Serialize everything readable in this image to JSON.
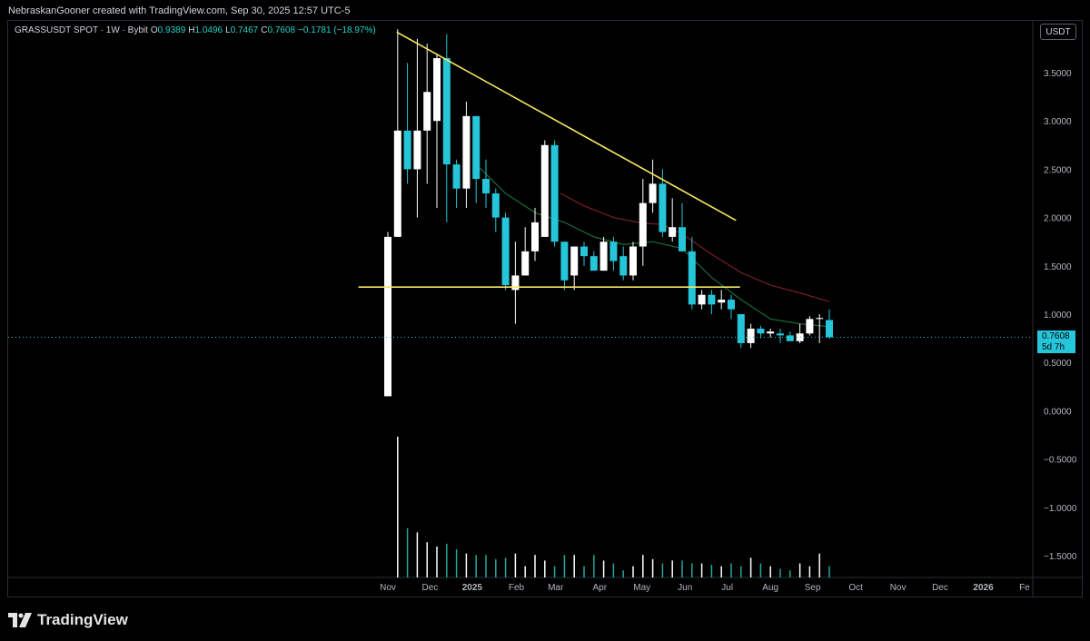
{
  "header": {
    "attribution": "NebraskanGooner created with TradingView.com, Sep 30, 2025 12:57 UTC-5"
  },
  "legend": {
    "symbol": "GRASSUSDT SPOT · 1W · Bybit",
    "o_label": "O",
    "o_value": "0.9389",
    "h_label": "H",
    "h_value": "1.0496",
    "l_label": "L",
    "l_value": "0.7467",
    "c_label": "C",
    "c_value": "0.7608",
    "change": "−0.1781 (−18.97%)"
  },
  "unit_button": "USDT",
  "price_tag": {
    "price": "0.7608",
    "countdown": "5d 7h"
  },
  "brand": {
    "logo_text": "TradingView"
  },
  "colors": {
    "up": "#ffffff",
    "down": "#26c6da",
    "trend": "#f5e663",
    "ma_green": "#1b6b3a",
    "ma_red": "#7d1f24",
    "volume_up": "#ffffff",
    "volume_down": "#26a69a"
  },
  "chart_data": {
    "type": "candlestick",
    "y_axis": {
      "range": [
        -1.75,
        3.95
      ],
      "ticks": [
        "3.5000",
        "3.0000",
        "2.5000",
        "2.0000",
        "1.5000",
        "1.0000",
        "0.5000",
        "0.0000",
        "−0.5000",
        "−1.0000",
        "−1.5000"
      ],
      "tick_values": [
        3.5,
        3.0,
        2.5,
        2.0,
        1.5,
        1.0,
        0.5,
        0.0,
        -0.5,
        -1.0,
        -1.5
      ]
    },
    "x_axis": {
      "labels": [
        "Nov",
        "Dec",
        "2025",
        "Feb",
        "Mar",
        "Apr",
        "May",
        "Jun",
        "Jul",
        "Aug",
        "Sep",
        "Oct",
        "Nov",
        "Dec",
        "2026",
        "Fe"
      ],
      "label_weeks": [
        0,
        4.3,
        8.6,
        13.1,
        17.1,
        21.6,
        25.9,
        30.3,
        34.6,
        39.0,
        43.3,
        47.7,
        52.0,
        56.3,
        60.7,
        64.9
      ],
      "bold_labels": [
        "2025",
        "2026"
      ]
    },
    "candles": [
      {
        "o": 0.15,
        "h": 1.85,
        "l": 0.15,
        "c": 1.8
      },
      {
        "o": 1.8,
        "h": 3.95,
        "l": 1.8,
        "c": 2.9
      },
      {
        "o": 2.9,
        "h": 3.6,
        "l": 2.35,
        "c": 2.5
      },
      {
        "o": 2.5,
        "h": 3.85,
        "l": 2.0,
        "c": 2.9
      },
      {
        "o": 2.9,
        "h": 3.8,
        "l": 2.35,
        "c": 3.3
      },
      {
        "o": 3.0,
        "h": 3.7,
        "l": 2.1,
        "c": 3.65
      },
      {
        "o": 3.65,
        "h": 3.9,
        "l": 1.95,
        "c": 2.55
      },
      {
        "o": 2.55,
        "h": 2.6,
        "l": 2.1,
        "c": 2.3
      },
      {
        "o": 2.3,
        "h": 3.2,
        "l": 2.1,
        "c": 3.05
      },
      {
        "o": 3.05,
        "h": 3.05,
        "l": 2.15,
        "c": 2.4
      },
      {
        "o": 2.4,
        "h": 2.6,
        "l": 2.1,
        "c": 2.25
      },
      {
        "o": 2.25,
        "h": 2.3,
        "l": 1.85,
        "c": 2.0
      },
      {
        "o": 2.0,
        "h": 2.05,
        "l": 1.25,
        "c": 1.3
      },
      {
        "o": 1.25,
        "h": 1.75,
        "l": 0.9,
        "c": 1.4
      },
      {
        "o": 1.4,
        "h": 1.9,
        "l": 1.4,
        "c": 1.65
      },
      {
        "o": 1.65,
        "h": 2.1,
        "l": 1.55,
        "c": 1.95
      },
      {
        "o": 1.8,
        "h": 2.8,
        "l": 1.8,
        "c": 2.75
      },
      {
        "o": 2.75,
        "h": 2.8,
        "l": 1.7,
        "c": 1.75
      },
      {
        "o": 1.75,
        "h": 1.75,
        "l": 1.25,
        "c": 1.35
      },
      {
        "o": 1.4,
        "h": 1.7,
        "l": 1.25,
        "c": 1.7
      },
      {
        "o": 1.7,
        "h": 1.75,
        "l": 1.5,
        "c": 1.6
      },
      {
        "o": 1.6,
        "h": 1.65,
        "l": 1.45,
        "c": 1.45
      },
      {
        "o": 1.45,
        "h": 1.8,
        "l": 1.45,
        "c": 1.75
      },
      {
        "o": 1.75,
        "h": 1.8,
        "l": 1.45,
        "c": 1.55
      },
      {
        "o": 1.6,
        "h": 1.7,
        "l": 1.35,
        "c": 1.4
      },
      {
        "o": 1.4,
        "h": 1.75,
        "l": 1.35,
        "c": 1.7
      },
      {
        "o": 1.7,
        "h": 2.4,
        "l": 1.5,
        "c": 2.15
      },
      {
        "o": 2.15,
        "h": 2.6,
        "l": 2.05,
        "c": 2.35
      },
      {
        "o": 2.35,
        "h": 2.5,
        "l": 1.8,
        "c": 1.85
      },
      {
        "o": 1.8,
        "h": 2.2,
        "l": 1.75,
        "c": 1.9
      },
      {
        "o": 1.9,
        "h": 2.15,
        "l": 1.65,
        "c": 1.65
      },
      {
        "o": 1.65,
        "h": 1.8,
        "l": 1.05,
        "c": 1.1
      },
      {
        "o": 1.1,
        "h": 1.25,
        "l": 1.05,
        "c": 1.2
      },
      {
        "o": 1.2,
        "h": 1.25,
        "l": 1.0,
        "c": 1.1
      },
      {
        "o": 1.12,
        "h": 1.25,
        "l": 1.05,
        "c": 1.15
      },
      {
        "o": 1.15,
        "h": 1.2,
        "l": 0.95,
        "c": 1.05
      },
      {
        "o": 1.0,
        "h": 0.98,
        "l": 0.65,
        "c": 0.7
      },
      {
        "o": 0.7,
        "h": 0.9,
        "l": 0.65,
        "c": 0.85
      },
      {
        "o": 0.85,
        "h": 0.88,
        "l": 0.75,
        "c": 0.8
      },
      {
        "o": 0.8,
        "h": 0.85,
        "l": 0.76,
        "c": 0.82
      },
      {
        "o": 0.8,
        "h": 0.85,
        "l": 0.7,
        "c": 0.78
      },
      {
        "o": 0.78,
        "h": 0.82,
        "l": 0.72,
        "c": 0.72
      },
      {
        "o": 0.72,
        "h": 0.9,
        "l": 0.7,
        "c": 0.8
      },
      {
        "o": 0.8,
        "h": 0.98,
        "l": 0.78,
        "c": 0.95
      },
      {
        "o": 0.95,
        "h": 1.0,
        "l": 0.7,
        "c": 0.96
      },
      {
        "o": 0.9389,
        "h": 1.0496,
        "l": 0.7467,
        "c": 0.7608
      }
    ],
    "volume": {
      "range_top_value": 1.0,
      "values": [
        0.0,
        1.0,
        0.35,
        0.32,
        0.25,
        0.22,
        0.24,
        0.2,
        0.17,
        0.16,
        0.16,
        0.13,
        0.14,
        0.17,
        0.08,
        0.16,
        0.12,
        0.08,
        0.16,
        0.16,
        0.08,
        0.16,
        0.12,
        0.1,
        0.05,
        0.08,
        0.16,
        0.13,
        0.1,
        0.12,
        0.12,
        0.1,
        0.1,
        0.09,
        0.08,
        0.1,
        0.08,
        0.14,
        0.1,
        0.08,
        0.06,
        0.05,
        0.1,
        0.08,
        0.17,
        0.08
      ]
    },
    "trendlines": [
      {
        "from": {
          "week": 0.9,
          "price": 3.92
        },
        "to": {
          "week": 35.5,
          "price": 1.97
        }
      },
      {
        "from": {
          "week": -3.0,
          "price": 1.28
        },
        "to": {
          "week": 35.9,
          "price": 1.28
        }
      }
    ],
    "ma_green": [
      {
        "week": 9,
        "price": 2.55
      },
      {
        "week": 12,
        "price": 2.25
      },
      {
        "week": 15,
        "price": 2.05
      },
      {
        "week": 18,
        "price": 1.95
      },
      {
        "week": 21,
        "price": 1.8
      },
      {
        "week": 24,
        "price": 1.72
      },
      {
        "week": 27,
        "price": 1.75
      },
      {
        "week": 30,
        "price": 1.68
      },
      {
        "week": 33,
        "price": 1.38
      },
      {
        "week": 36,
        "price": 1.15
      },
      {
        "week": 39,
        "price": 0.95
      },
      {
        "week": 42,
        "price": 0.9
      },
      {
        "week": 45,
        "price": 0.87
      }
    ],
    "ma_red": [
      {
        "week": 17.6,
        "price": 2.25
      },
      {
        "week": 20,
        "price": 2.12
      },
      {
        "week": 23,
        "price": 2.0
      },
      {
        "week": 26,
        "price": 1.94
      },
      {
        "week": 28,
        "price": 1.93
      },
      {
        "week": 30,
        "price": 1.83
      },
      {
        "week": 33,
        "price": 1.62
      },
      {
        "week": 36,
        "price": 1.43
      },
      {
        "week": 39,
        "price": 1.3
      },
      {
        "week": 42,
        "price": 1.22
      },
      {
        "week": 45,
        "price": 1.13
      }
    ],
    "current_price": 0.7608
  }
}
